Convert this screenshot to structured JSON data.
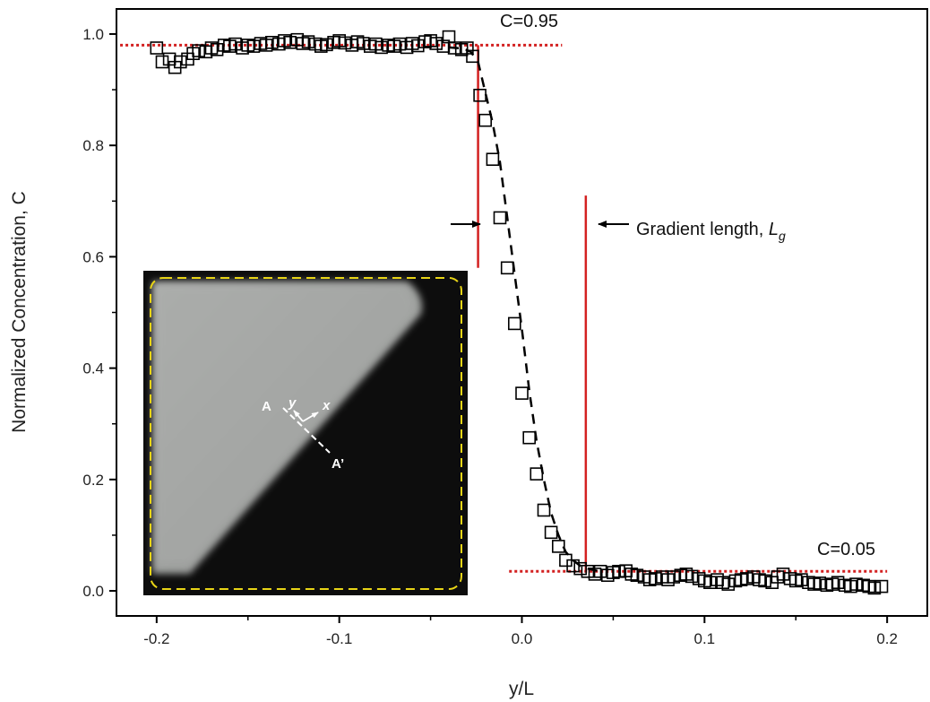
{
  "chart_data": {
    "type": "scatter",
    "xlabel": "y/L",
    "ylabel": "Normalized Concentration, C",
    "xlim": [
      -0.222,
      0.222
    ],
    "ylim": [
      -0.045,
      1.045
    ],
    "x_ticks": [
      -0.2,
      -0.1,
      0.0,
      0.1,
      0.2
    ],
    "x_tick_labels": [
      "-0.2",
      "-0.1",
      "0.0",
      "0.1",
      "0.2"
    ],
    "y_ticks": [
      0.0,
      0.2,
      0.4,
      0.6,
      0.8,
      1.0
    ],
    "y_tick_labels": [
      "0.0",
      "0.2",
      "0.4",
      "0.6",
      "0.8",
      "1.0"
    ],
    "grid": false,
    "series": [
      {
        "marker": "open-square",
        "color": "#000000",
        "x": [
          -0.2,
          -0.197,
          -0.193,
          -0.19,
          -0.187,
          -0.183,
          -0.18,
          -0.177,
          -0.173,
          -0.17,
          -0.167,
          -0.163,
          -0.16,
          -0.157,
          -0.153,
          -0.15,
          -0.147,
          -0.143,
          -0.14,
          -0.137,
          -0.133,
          -0.13,
          -0.127,
          -0.123,
          -0.12,
          -0.117,
          -0.113,
          -0.11,
          -0.107,
          -0.103,
          -0.1,
          -0.097,
          -0.093,
          -0.09,
          -0.087,
          -0.083,
          -0.08,
          -0.077,
          -0.073,
          -0.07,
          -0.067,
          -0.063,
          -0.06,
          -0.057,
          -0.053,
          -0.05,
          -0.047,
          -0.043,
          -0.04,
          -0.037,
          -0.033,
          -0.03,
          -0.027,
          -0.023,
          -0.02,
          -0.016,
          -0.012,
          -0.008,
          -0.004,
          0.0,
          0.004,
          0.008,
          0.012,
          0.016,
          0.02,
          0.024,
          0.028,
          0.032,
          0.036,
          0.04,
          0.043,
          0.047,
          0.05,
          0.053,
          0.057,
          0.06,
          0.063,
          0.067,
          0.07,
          0.073,
          0.077,
          0.08,
          0.083,
          0.087,
          0.09,
          0.093,
          0.097,
          0.1,
          0.103,
          0.107,
          0.11,
          0.113,
          0.117,
          0.12,
          0.123,
          0.127,
          0.13,
          0.133,
          0.137,
          0.14,
          0.143,
          0.147,
          0.15,
          0.153,
          0.157,
          0.16,
          0.163,
          0.167,
          0.17,
          0.173,
          0.177,
          0.18,
          0.183,
          0.187,
          0.19,
          0.193,
          0.197
        ],
        "y": [
          0.975,
          0.95,
          0.955,
          0.94,
          0.95,
          0.955,
          0.965,
          0.97,
          0.968,
          0.975,
          0.972,
          0.98,
          0.978,
          0.982,
          0.975,
          0.98,
          0.978,
          0.983,
          0.98,
          0.985,
          0.982,
          0.988,
          0.985,
          0.99,
          0.983,
          0.986,
          0.982,
          0.978,
          0.981,
          0.985,
          0.988,
          0.984,
          0.98,
          0.986,
          0.983,
          0.978,
          0.982,
          0.976,
          0.98,
          0.978,
          0.982,
          0.976,
          0.983,
          0.979,
          0.986,
          0.988,
          0.983,
          0.978,
          0.995,
          0.975,
          0.972,
          0.975,
          0.96,
          0.89,
          0.845,
          0.775,
          0.67,
          0.58,
          0.48,
          0.355,
          0.275,
          0.21,
          0.145,
          0.105,
          0.08,
          0.055,
          0.045,
          0.04,
          0.035,
          0.03,
          0.035,
          0.028,
          0.033,
          0.035,
          0.036,
          0.03,
          0.028,
          0.025,
          0.02,
          0.022,
          0.025,
          0.02,
          0.025,
          0.028,
          0.03,
          0.026,
          0.022,
          0.018,
          0.015,
          0.02,
          0.015,
          0.012,
          0.018,
          0.02,
          0.022,
          0.025,
          0.02,
          0.018,
          0.015,
          0.025,
          0.03,
          0.022,
          0.018,
          0.02,
          0.015,
          0.012,
          0.014,
          0.01,
          0.012,
          0.015,
          0.01,
          0.008,
          0.012,
          0.01,
          0.008,
          0.005,
          0.008
        ]
      },
      {
        "line_style": "dashed",
        "color": "#000000",
        "x": [
          -0.04,
          -0.032,
          -0.028,
          -0.024,
          -0.02,
          -0.016,
          -0.012,
          -0.008,
          -0.004,
          0.0,
          0.004,
          0.008,
          0.012,
          0.016,
          0.02,
          0.024,
          0.028,
          0.032,
          0.036,
          0.04,
          0.045
        ],
        "y": [
          0.976,
          0.974,
          0.968,
          0.95,
          0.895,
          0.84,
          0.77,
          0.67,
          0.57,
          0.47,
          0.36,
          0.27,
          0.2,
          0.14,
          0.1,
          0.07,
          0.055,
          0.045,
          0.04,
          0.037,
          0.034
        ]
      }
    ],
    "reference_lines": [
      {
        "orientation": "horizontal",
        "y": 0.98,
        "x_range": [
          -0.22,
          0.022
        ],
        "style": "dotted",
        "color": "#d32020"
      },
      {
        "orientation": "horizontal",
        "y": 0.035,
        "x_range": [
          -0.007,
          0.2
        ],
        "style": "dotted",
        "color": "#d32020"
      },
      {
        "orientation": "vertical",
        "x": -0.024,
        "y_range": [
          0.58,
          0.98
        ],
        "style": "solid",
        "color": "#d32020"
      },
      {
        "orientation": "vertical",
        "x": 0.035,
        "y_range": [
          0.035,
          0.71
        ],
        "style": "solid",
        "color": "#d32020"
      }
    ],
    "annotations": [
      {
        "text": "C=0.95",
        "x": -0.017,
        "y": 1.0
      },
      {
        "text": "C=0.05",
        "x": 0.157,
        "y": 0.062
      },
      {
        "text_main": "Gradient length, ",
        "text_italic": "L",
        "text_sub": "g",
        "x": 0.053,
        "y": 0.655
      },
      {
        "arrow": "right",
        "from_x": -0.043,
        "to_x": -0.026,
        "y": 0.655
      },
      {
        "arrow": "left",
        "from_x": 0.053,
        "to_x": 0.037,
        "y": 0.655
      }
    ],
    "inset": {
      "type": "image",
      "description_labels": [
        "A",
        "A’",
        "y",
        "x"
      ],
      "colors": {
        "bright": "#a7a9a7",
        "dark": "#111111",
        "border": "#e8d416"
      }
    }
  }
}
